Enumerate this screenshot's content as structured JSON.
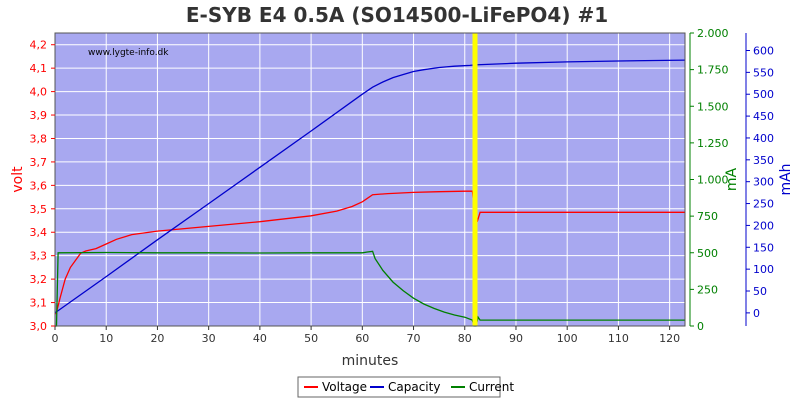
{
  "chart_data": {
    "type": "line",
    "title": "E-SYB E4 0.5A (SO14500-LiFePO4) #1",
    "watermark": "www.lygte-info.dk",
    "xlabel": "minutes",
    "xlim": [
      0,
      123
    ],
    "x_ticks": [
      0,
      10,
      20,
      30,
      40,
      50,
      60,
      70,
      80,
      90,
      100,
      110,
      120
    ],
    "marker_x": 82,
    "axes": {
      "left": {
        "label": "volt",
        "range": [
          3.0,
          4.25
        ],
        "ticks": [
          "3,0",
          "3,1",
          "3,2",
          "3,3",
          "3,4",
          "3,5",
          "3,6",
          "3,7",
          "3,8",
          "3,9",
          "4,0",
          "4,1",
          "4,2"
        ],
        "color": "#ff0000"
      },
      "right1": {
        "label": "mA",
        "range": [
          0,
          2000
        ],
        "ticks": [
          "0",
          "250",
          "500",
          "750",
          "1.000",
          "1.250",
          "1.500",
          "1.750",
          "2.000"
        ],
        "color": "#008000"
      },
      "right2": {
        "label": "mAh",
        "range": [
          -30,
          640
        ],
        "ticks": [
          "0",
          "50",
          "100",
          "150",
          "200",
          "250",
          "300",
          "350",
          "400",
          "450",
          "500",
          "550",
          "600"
        ],
        "color": "#0000cc"
      }
    },
    "series": [
      {
        "name": "Voltage",
        "color": "#ff0000",
        "axis": "left",
        "x": [
          0.2,
          1,
          2,
          3,
          4,
          5,
          6,
          8,
          10,
          12,
          15,
          20,
          30,
          40,
          50,
          55,
          58,
          60,
          61,
          62,
          65,
          70,
          75,
          80,
          81.5,
          82,
          82.5,
          83,
          90,
          100,
          110,
          123
        ],
        "y": [
          3.05,
          3.12,
          3.2,
          3.25,
          3.28,
          3.31,
          3.32,
          3.33,
          3.35,
          3.37,
          3.39,
          3.405,
          3.425,
          3.445,
          3.47,
          3.49,
          3.51,
          3.53,
          3.545,
          3.56,
          3.565,
          3.57,
          3.573,
          3.575,
          3.575,
          3.47,
          3.45,
          3.485,
          3.485,
          3.485,
          3.485,
          3.485
        ]
      },
      {
        "name": "Capacity",
        "color": "#0000cc",
        "axis": "right2",
        "x": [
          0,
          10,
          20,
          30,
          40,
          50,
          60,
          62,
          64,
          66,
          68,
          70,
          72,
          75,
          78,
          81,
          82,
          90,
          100,
          110,
          123
        ],
        "y": [
          0,
          83,
          167,
          250,
          333,
          416,
          500,
          516,
          528,
          538,
          545,
          552,
          556,
          561,
          564,
          566,
          567,
          571,
          574,
          576,
          578
        ]
      },
      {
        "name": "Current",
        "color": "#008000",
        "axis": "right1",
        "x": [
          0,
          0.3,
          0.6,
          10,
          20,
          30,
          40,
          50,
          60,
          61,
          62,
          62.5,
          64,
          66,
          68,
          70,
          72,
          74,
          76,
          78,
          80,
          81.5,
          81.8,
          82.2,
          82.6,
          83,
          90,
          100,
          110,
          123
        ],
        "y": [
          0,
          0,
          500,
          502,
          500,
          500,
          498,
          500,
          500,
          505,
          510,
          460,
          380,
          300,
          240,
          190,
          150,
          120,
          95,
          75,
          60,
          40,
          0,
          0,
          60,
          40,
          40,
          40,
          40,
          40
        ]
      }
    ],
    "legend": {
      "position": "bottom-center",
      "items": [
        "Voltage",
        "Capacity",
        "Current"
      ]
    },
    "grid": true,
    "background": "#a8a8f0"
  }
}
